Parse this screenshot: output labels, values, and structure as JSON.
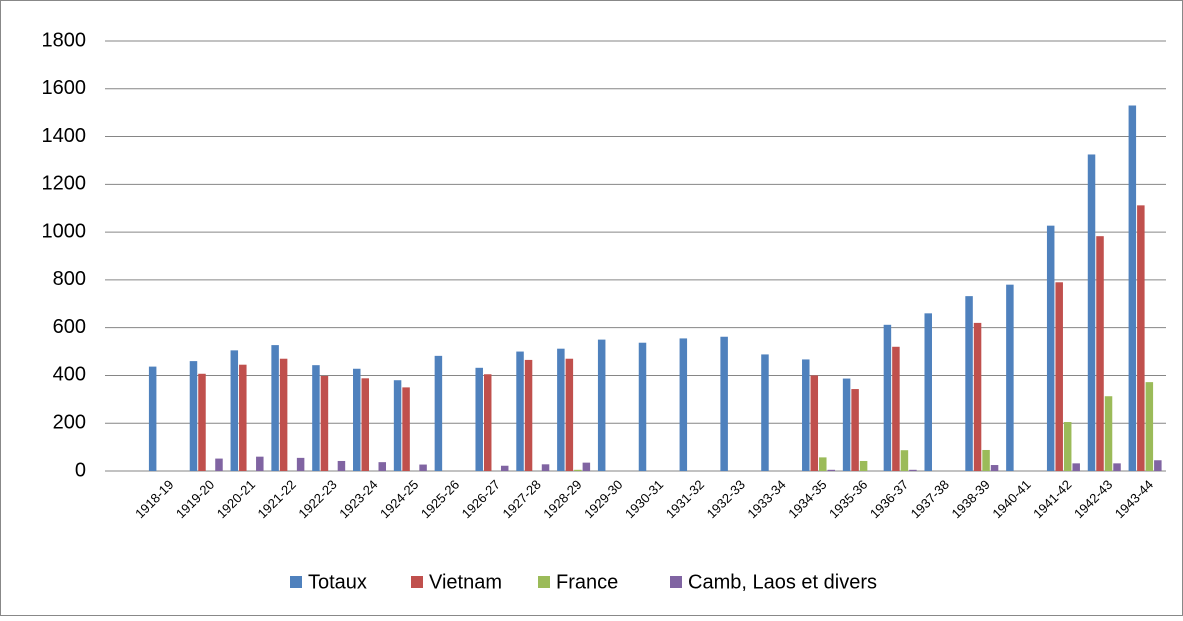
{
  "chart_data": {
    "type": "bar",
    "categories": [
      "1918-19",
      "1919-20",
      "1920-21",
      "1921-22",
      "1922-23",
      "1923-24",
      "1924-25",
      "1925-26",
      "1926-27",
      "1927-28",
      "1928-29",
      "1929-30",
      "1930-31",
      "1931-32",
      "1932-33",
      "1933-34",
      "1934-35",
      "1935-36",
      "1936-37",
      "1937-38",
      "1938-39",
      "1940-41",
      "1941-42",
      "1942-43",
      "1943-44"
    ],
    "series": [
      {
        "name": "Totaux",
        "color": "#4f81bd",
        "values": [
          437,
          460,
          505,
          527,
          443,
          428,
          380,
          482,
          432,
          500,
          512,
          550,
          537,
          555,
          562,
          488,
          467,
          387,
          612,
          660,
          732,
          780,
          1027,
          1325,
          1530
        ]
      },
      {
        "name": "Vietnam",
        "color": "#c0504d",
        "values": [
          null,
          407,
          445,
          470,
          398,
          388,
          350,
          null,
          405,
          465,
          470,
          null,
          null,
          null,
          null,
          null,
          400,
          343,
          520,
          null,
          620,
          null,
          790,
          983,
          1112
        ]
      },
      {
        "name": "France",
        "color": "#9bbb59",
        "values": [
          null,
          null,
          null,
          null,
          null,
          null,
          null,
          null,
          null,
          null,
          5,
          null,
          null,
          null,
          null,
          null,
          57,
          42,
          87,
          null,
          88,
          null,
          205,
          313,
          372
        ]
      },
      {
        "name": "Camb, Laos et divers",
        "color": "#8064a2",
        "values": [
          null,
          52,
          60,
          55,
          42,
          37,
          27,
          null,
          22,
          28,
          35,
          null,
          null,
          null,
          null,
          null,
          5,
          null,
          5,
          null,
          25,
          null,
          32,
          32,
          45
        ]
      }
    ],
    "ylim": [
      0,
      1800
    ],
    "yticks": [
      0,
      200,
      400,
      600,
      800,
      1000,
      1200,
      1400,
      1600,
      1800
    ],
    "grid": true,
    "legend": "bottom"
  }
}
